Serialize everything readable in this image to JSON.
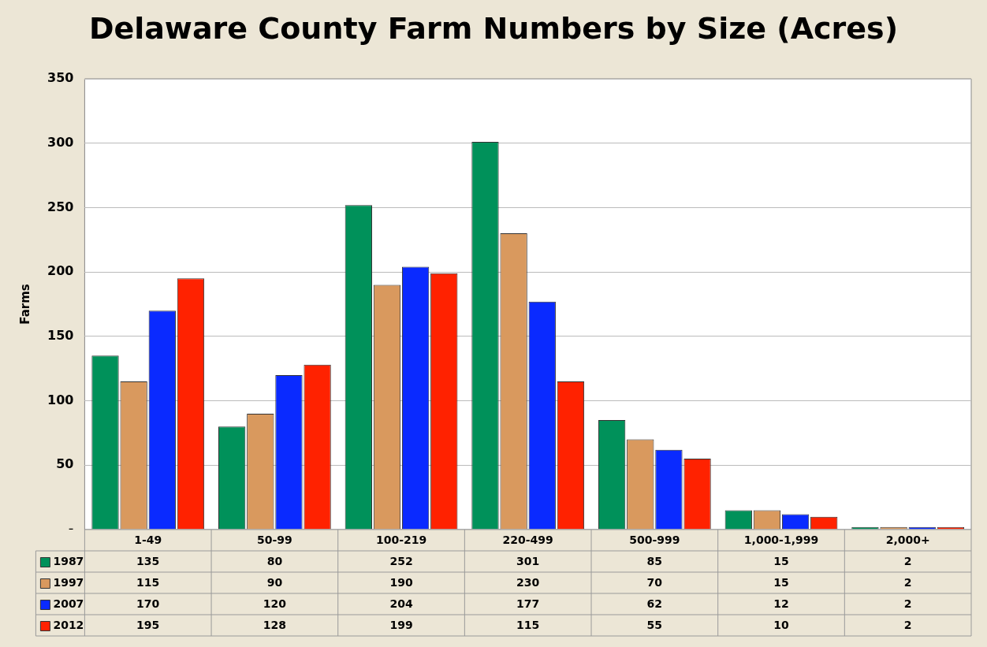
{
  "chart_data": {
    "type": "bar",
    "title": "Delaware County Farm Numbers by Size (Acres)",
    "ylabel": "Farms",
    "categories": [
      "1-49",
      "50-99",
      "100-219",
      "220-499",
      "500-999",
      "1,000-1,999",
      "2,000+"
    ],
    "series": [
      {
        "name": "1987",
        "color": "#00915a",
        "values": [
          135,
          80,
          252,
          301,
          85,
          15,
          2
        ]
      },
      {
        "name": "1997",
        "color": "#d9995e",
        "values": [
          115,
          90,
          190,
          230,
          70,
          15,
          2
        ]
      },
      {
        "name": "2007",
        "color": "#0a2aff",
        "values": [
          170,
          120,
          204,
          177,
          62,
          12,
          2
        ]
      },
      {
        "name": "2012",
        "color": "#ff2200",
        "values": [
          195,
          128,
          199,
          115,
          55,
          10,
          2
        ]
      }
    ],
    "ylim": [
      0,
      350
    ],
    "yticks": [
      {
        "value": 0,
        "label": "-"
      },
      50,
      100,
      150,
      200,
      250,
      300,
      350
    ],
    "grid": "y",
    "legend": "bottom left",
    "data_labels": true
  }
}
